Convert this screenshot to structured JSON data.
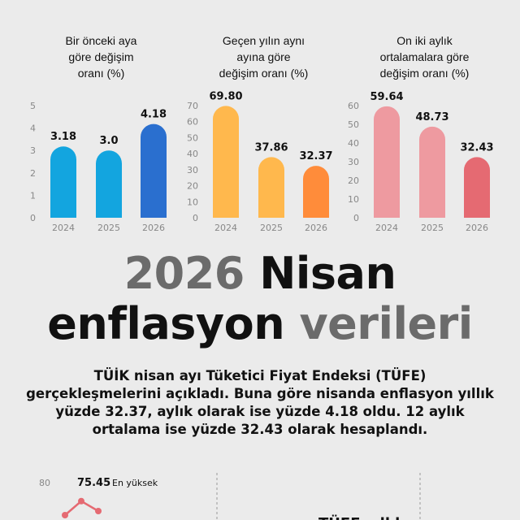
{
  "headline": {
    "line1_part1": "2026",
    "line1_part2": "Nisan",
    "line2_part1": "enflasyon",
    "line2_part2": "verileri"
  },
  "description": "TÜİK nisan ayı Tüketici Fiyat Endeksi (TÜFE) gerçekleşmelerini açıkladı. Buna göre nisanda enflasyon yıllık yüzde 32.37, aylık olarak ise yüzde 4.18 oldu. 12 aylık ortalama ise yüzde 32.43 olarak hesaplandı.",
  "chart_data": [
    {
      "type": "bar",
      "title": "Bir önceki aya\ngöre değişim\noranı (%)",
      "categories": [
        "2024",
        "2025",
        "2026"
      ],
      "values": [
        3.18,
        3.0,
        4.18
      ],
      "value_labels": [
        "3.18",
        "3.0",
        "4.18"
      ],
      "yticks": [
        "0",
        "1",
        "2",
        "3",
        "4",
        "5"
      ],
      "ylim": [
        0,
        5
      ],
      "colors": [
        "#13a5df",
        "#13a5df",
        "#2a6fcf"
      ]
    },
    {
      "type": "bar",
      "title": "Geçen yılın aynı\nayına göre\ndeğişim oranı (%)",
      "categories": [
        "2024",
        "2025",
        "2026"
      ],
      "values": [
        69.8,
        37.86,
        32.37
      ],
      "value_labels": [
        "69.80",
        "37.86",
        "32.37"
      ],
      "yticks": [
        "0",
        "10",
        "20",
        "30",
        "40",
        "50",
        "60",
        "70"
      ],
      "ylim": [
        0,
        70
      ],
      "colors": [
        "#ffb84d",
        "#ffb84d",
        "#ff8c3a"
      ]
    },
    {
      "type": "bar",
      "title": "On iki aylık\nortalamalara göre\ndeğişim oranı (%)",
      "categories": [
        "2024",
        "2025",
        "2026"
      ],
      "values": [
        59.64,
        48.73,
        32.43
      ],
      "value_labels": [
        "59.64",
        "48.73",
        "32.43"
      ],
      "yticks": [
        "0",
        "10",
        "20",
        "30",
        "40",
        "50",
        "60"
      ],
      "ylim": [
        0,
        60
      ],
      "colors": [
        "#ee9aa0",
        "#ee9aa0",
        "#e56a72"
      ]
    },
    {
      "type": "line",
      "ytick": "80",
      "annotation_value": "75.45",
      "annotation_label": "En yüksek",
      "values": [
        72.0,
        75.45,
        73.0
      ],
      "color": "#e56a72"
    }
  ],
  "bottom_right_text": "TÜFE yıllık"
}
